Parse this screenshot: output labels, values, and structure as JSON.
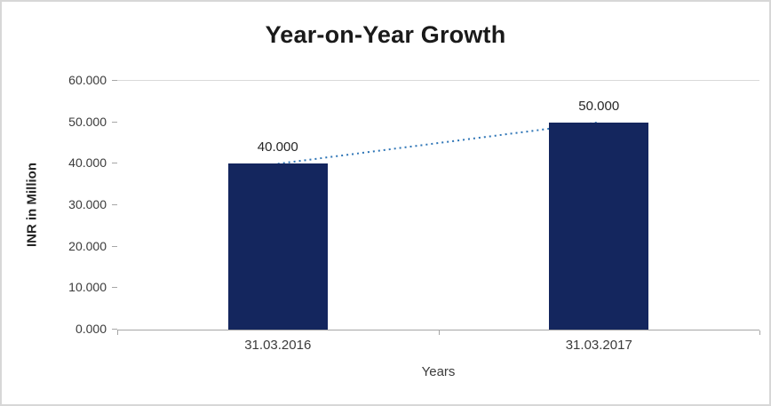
{
  "chart_data": {
    "type": "bar",
    "title": "Year-on-Year Growth",
    "xlabel": "Years",
    "ylabel": "INR in Million",
    "categories": [
      "31.03.2016",
      "31.03.2017"
    ],
    "values": [
      40,
      50
    ],
    "value_labels": [
      "40.000",
      "50.000"
    ],
    "yticks": [
      0,
      10,
      20,
      30,
      40,
      50,
      60
    ],
    "ytick_labels": [
      "0.000",
      "10.000",
      "20.000",
      "30.000",
      "40.000",
      "50.000",
      "60.000"
    ],
    "ylim": [
      0,
      60
    ],
    "grid": "top-line-only",
    "legend": "none",
    "bar_color": "#14265e",
    "trendline": {
      "style": "dotted",
      "color": "#2e75b6"
    }
  }
}
